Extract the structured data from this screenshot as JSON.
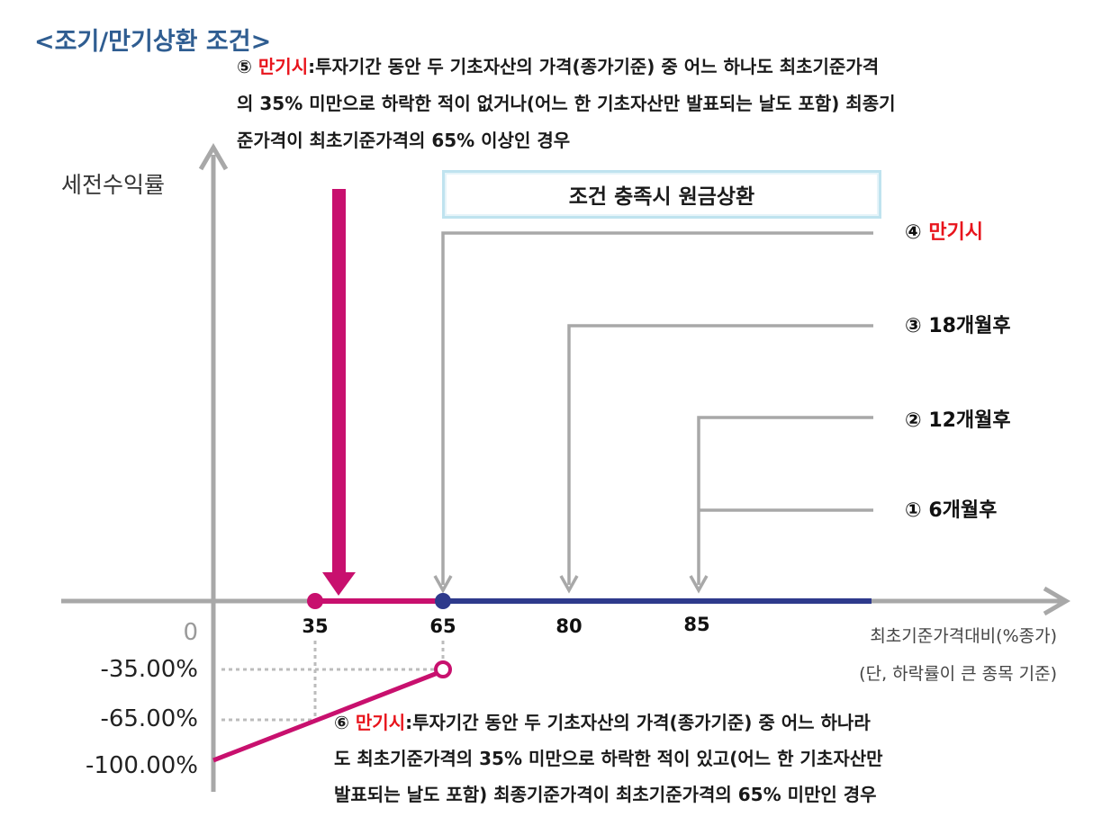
{
  "title": "<조기/만기상환 조건>",
  "note5": {
    "marker": "⑤",
    "label": "만기시",
    "line1": ":투자기간 동안 두 기초자산의 가격(종가기준) 중 어느 하나도 최초기준가격",
    "line2": "의 35% 미만으로 하락한 적이 없거나(어느 한 기초자산만 발표되는 날도 포함) 최종기",
    "line3": "준가격이 최초기준가격의 65% 이상인 경우"
  },
  "note6": {
    "marker": "⑥",
    "label": "만기시",
    "line1": ":투자기간 동안 두 기초자산의 가격(종가기준) 중 어느 하나라",
    "line2": "도 최초기준가격의 35% 미만으로 하락한 적이 있고(어느 한 기초자산만",
    "line3": "발표되는 날도 포함) 최종기준가격이 최초기준가격의 65% 미만인 경우"
  },
  "box_label": "조건 충족시 원금상환",
  "conditions": [
    {
      "marker": "④",
      "label": "만기시",
      "threshold": 65
    },
    {
      "marker": "③",
      "label": "18개월후",
      "threshold": 80
    },
    {
      "marker": "②",
      "label": "12개월후",
      "threshold": 85
    },
    {
      "marker": "①",
      "label": "6개월후",
      "threshold": 85
    }
  ],
  "axis": {
    "y_label": "세전수익률",
    "y_ticks": [
      "0",
      "-35.00%",
      "-65.00%",
      "-100.00%"
    ],
    "x_ticks": [
      "35",
      "65",
      "80",
      "85"
    ],
    "x_label_line1": "최초기준가격대비(%종가)",
    "x_label_line2": "(단, 하락률이 큰 종목 기준)"
  },
  "colors": {
    "magenta": "#c8106e",
    "navy": "#2e3a8c",
    "gray": "#a8a8a8",
    "title": "#2f5d91",
    "red": "#e8141c"
  }
}
